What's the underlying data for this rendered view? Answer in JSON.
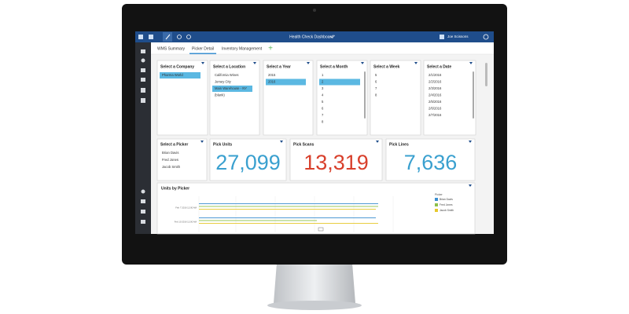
{
  "app": {
    "title": "Health Check Dashboard*",
    "user": "Joe Scissons"
  },
  "tabs": {
    "items": [
      "WMS Summary",
      "Picker Detail",
      "Inventory Management"
    ],
    "active": 1
  },
  "filters": [
    {
      "title": "Select a Company",
      "items": [
        "Pharma World"
      ],
      "selected": 0
    },
    {
      "title": "Select a Location",
      "items": [
        "California Wines",
        "Jersey City",
        "Main Warehouse - NY",
        "(blank)"
      ],
      "selected": 2
    },
    {
      "title": "Select a Year",
      "items": [
        "2015",
        "2016"
      ],
      "selected": 1
    },
    {
      "title": "Select a Month",
      "items": [
        "1",
        "2",
        "3",
        "4",
        "5",
        "6",
        "7",
        "8"
      ],
      "selected": 1
    },
    {
      "title": "Select a Week",
      "items": [
        "5",
        "6",
        "7",
        "8"
      ]
    },
    {
      "title": "Select a Date",
      "items": [
        "2/1/2016",
        "2/2/2016",
        "2/3/2016",
        "2/4/2016",
        "2/5/2016",
        "2/6/2016",
        "2/7/2016"
      ]
    }
  ],
  "pickers": {
    "title": "Select a Picker",
    "items": [
      "Brian Davis",
      "Fred Jones",
      "Jacob Smith"
    ]
  },
  "kpis": [
    {
      "title": "Pick Units",
      "value": "27,099",
      "color": "#3aa0cf"
    },
    {
      "title": "Pick Scans",
      "value": "13,319",
      "color": "#d8402c"
    },
    {
      "title": "Pick Lines",
      "value": "7,636",
      "color": "#3aa0cf"
    }
  ],
  "chart": {
    "title": "Units by Picker",
    "dates": [
      "Feb 7 2016 12:00 AM",
      "Feb 10 2016 12:00 AM"
    ],
    "legend_title": "Picker",
    "legend": [
      {
        "name": "Brian Davis",
        "color": "#3b8fd0"
      },
      {
        "name": "Fred Jones",
        "color": "#8dc04a"
      },
      {
        "name": "Jacob Smith",
        "color": "#e6c82c"
      }
    ]
  }
}
